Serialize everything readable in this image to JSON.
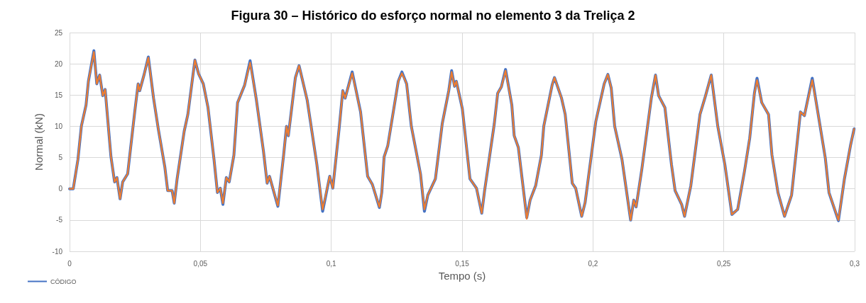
{
  "chart_data": {
    "type": "line",
    "title": "Figura 30 – Histórico do esforço normal no elemento 3 da Treliça 2",
    "xlabel": "Tempo (s)",
    "ylabel": "Normal (kN)",
    "x": [
      0,
      0.0014,
      0.0032,
      0.0045,
      0.0063,
      0.0072,
      0.0093,
      0.0104,
      0.0115,
      0.0127,
      0.0136,
      0.0158,
      0.0172,
      0.0181,
      0.0193,
      0.0203,
      0.0222,
      0.0249,
      0.0262,
      0.0268,
      0.0285,
      0.0301,
      0.0321,
      0.0339,
      0.0364,
      0.0375,
      0.0392,
      0.04,
      0.0411,
      0.0438,
      0.0452,
      0.0479,
      0.0493,
      0.0511,
      0.0529,
      0.0552,
      0.0565,
      0.0576,
      0.0586,
      0.0599,
      0.061,
      0.0628,
      0.0642,
      0.0669,
      0.069,
      0.0714,
      0.0741,
      0.0755,
      0.0764,
      0.0796,
      0.0818,
      0.0829,
      0.0836,
      0.0863,
      0.0877,
      0.0908,
      0.0945,
      0.0967,
      0.0994,
      0.1006,
      0.103,
      0.1044,
      0.1053,
      0.108,
      0.1112,
      0.1139,
      0.1157,
      0.1184,
      0.1193,
      0.1202,
      0.1216,
      0.1256,
      0.127,
      0.1288,
      0.1306,
      0.1341,
      0.1356,
      0.1369,
      0.1398,
      0.1424,
      0.1449,
      0.146,
      0.1471,
      0.1478,
      0.1501,
      0.153,
      0.1555,
      0.1575,
      0.1586,
      0.1623,
      0.1636,
      0.165,
      0.1666,
      0.169,
      0.1699,
      0.1715,
      0.1747,
      0.176,
      0.1781,
      0.1803,
      0.1812,
      0.1844,
      0.1853,
      0.188,
      0.1894,
      0.1921,
      0.1934,
      0.1957,
      0.197,
      0.2011,
      0.2043,
      0.2057,
      0.207,
      0.2083,
      0.2111,
      0.2144,
      0.2156,
      0.2165,
      0.2187,
      0.2223,
      0.2239,
      0.2251,
      0.2275,
      0.23,
      0.2314,
      0.2339,
      0.235,
      0.2374,
      0.2409,
      0.2429,
      0.2452,
      0.2477,
      0.2504,
      0.2531,
      0.2553,
      0.2579,
      0.2599,
      0.2617,
      0.2627,
      0.2645,
      0.2671,
      0.2684,
      0.2707,
      0.2732,
      0.2759,
      0.2793,
      0.2808,
      0.2838,
      0.2865,
      0.2888,
      0.2902,
      0.2938,
      0.2961,
      0.2984,
      0.2998
    ],
    "series": [
      {
        "name": "CÓDIGO",
        "color": "#4472c4",
        "values": [
          0,
          0,
          4.7,
          10.0,
          13.4,
          17.2,
          22.1,
          16.8,
          18.2,
          14.9,
          15.9,
          5.2,
          1.1,
          1.8,
          -1.6,
          1.1,
          2.4,
          12.3,
          16.8,
          15.7,
          18.3,
          21.1,
          14.5,
          9.6,
          3.5,
          -0.3,
          -0.3,
          -2.3,
          1.6,
          9.2,
          11.9,
          20.6,
          18.4,
          16.8,
          13.0,
          4.7,
          -0.6,
          0.1,
          -2.5,
          1.8,
          1.1,
          5.4,
          13.8,
          16.6,
          20.5,
          14.2,
          6.0,
          0.9,
          2.0,
          -2.8,
          5.4,
          10.0,
          8.5,
          17.8,
          19.7,
          14.2,
          3.9,
          -3.6,
          2.0,
          0.1,
          9.6,
          15.7,
          14.5,
          18.7,
          12.3,
          2.0,
          0.7,
          -3.0,
          -0.6,
          5.1,
          6.9,
          17.2,
          18.7,
          16.8,
          10.0,
          2.4,
          -3.6,
          -1.0,
          1.6,
          10.4,
          15.7,
          18.9,
          16.4,
          17.2,
          12.8,
          1.6,
          0.1,
          -3.9,
          -0.3,
          10.4,
          15.3,
          16.3,
          19.1,
          13.4,
          8.5,
          6.6,
          -4.6,
          -1.8,
          0.5,
          5.4,
          10.0,
          16.6,
          17.8,
          14.5,
          11.9,
          0.9,
          0.1,
          -4.4,
          -2.2,
          10.8,
          16.8,
          18.3,
          16.1,
          10.0,
          4.7,
          -5.0,
          -1.8,
          -2.9,
          3.2,
          14.5,
          18.2,
          14.9,
          13.0,
          3.9,
          -0.3,
          -2.5,
          -4.4,
          0.5,
          11.9,
          14.7,
          18.2,
          10.0,
          3.9,
          -4.1,
          -3.3,
          2.8,
          8.1,
          15.3,
          17.7,
          13.8,
          11.9,
          5.4,
          -0.6,
          -4.4,
          -1.0,
          12.3,
          11.7,
          17.7,
          10.8,
          4.9,
          -0.6,
          -5.1,
          1.6,
          6.9,
          9.6
        ]
      },
      {
        "color": "#ed7d31",
        "values": [
          0,
          0,
          4.7,
          10.0,
          13.4,
          17.2,
          21.9,
          16.8,
          18.2,
          14.9,
          15.9,
          5.2,
          1.1,
          1.8,
          -1.6,
          1.1,
          2.4,
          12.3,
          16.8,
          15.7,
          18.3,
          21.0,
          14.5,
          9.6,
          3.5,
          -0.3,
          -0.3,
          -2.3,
          1.6,
          9.2,
          11.9,
          20.6,
          18.4,
          16.8,
          13.0,
          4.7,
          -0.6,
          0.1,
          -2.3,
          1.8,
          1.1,
          5.4,
          13.8,
          16.6,
          20.2,
          14.2,
          6.0,
          0.9,
          2.0,
          -2.7,
          5.4,
          10.0,
          8.5,
          17.8,
          19.7,
          14.2,
          3.9,
          -3.3,
          2.0,
          0.1,
          9.6,
          15.7,
          14.5,
          18.5,
          12.3,
          2.0,
          0.7,
          -2.9,
          -0.6,
          5.1,
          6.9,
          17.2,
          18.5,
          16.8,
          10.0,
          2.4,
          -3.3,
          -1.0,
          1.6,
          10.4,
          15.7,
          18.7,
          16.4,
          17.2,
          12.8,
          1.6,
          0.1,
          -3.9,
          -0.3,
          10.4,
          15.3,
          16.3,
          18.9,
          13.4,
          8.5,
          6.6,
          -4.8,
          -1.8,
          0.5,
          5.4,
          10.0,
          16.6,
          17.8,
          14.5,
          11.9,
          0.9,
          0.1,
          -4.4,
          -2.2,
          10.8,
          16.8,
          18.3,
          16.1,
          10.0,
          4.7,
          -5.0,
          -1.8,
          -2.9,
          3.2,
          14.5,
          18.2,
          14.9,
          13.0,
          3.9,
          -0.3,
          -2.5,
          -4.4,
          0.5,
          11.9,
          14.7,
          18.2,
          10.0,
          3.9,
          -4.1,
          -3.3,
          2.8,
          8.1,
          15.3,
          17.4,
          13.8,
          11.9,
          5.4,
          -0.6,
          -4.4,
          -1.0,
          12.3,
          11.7,
          17.4,
          10.8,
          4.9,
          -0.6,
          -5.0,
          1.6,
          6.9,
          9.6
        ]
      }
    ],
    "xlim": [
      0,
      0.3
    ],
    "xticks": [
      0,
      {
        "value": 0.05,
        "label": "0,05"
      },
      {
        "value": 0.1,
        "label": "0,1"
      },
      {
        "value": 0.15,
        "label": "0,15"
      },
      {
        "value": 0.2,
        "label": "0,2"
      },
      {
        "value": 0.25,
        "label": "0,25"
      },
      {
        "value": 0.3,
        "label": "0,3"
      }
    ],
    "ylim": [
      -10,
      25
    ],
    "yticks": [
      -10,
      -5,
      0,
      5,
      10,
      15,
      20,
      25
    ],
    "grid": true,
    "legend": "bottom left",
    "marker": "none",
    "line_style": "solid"
  }
}
